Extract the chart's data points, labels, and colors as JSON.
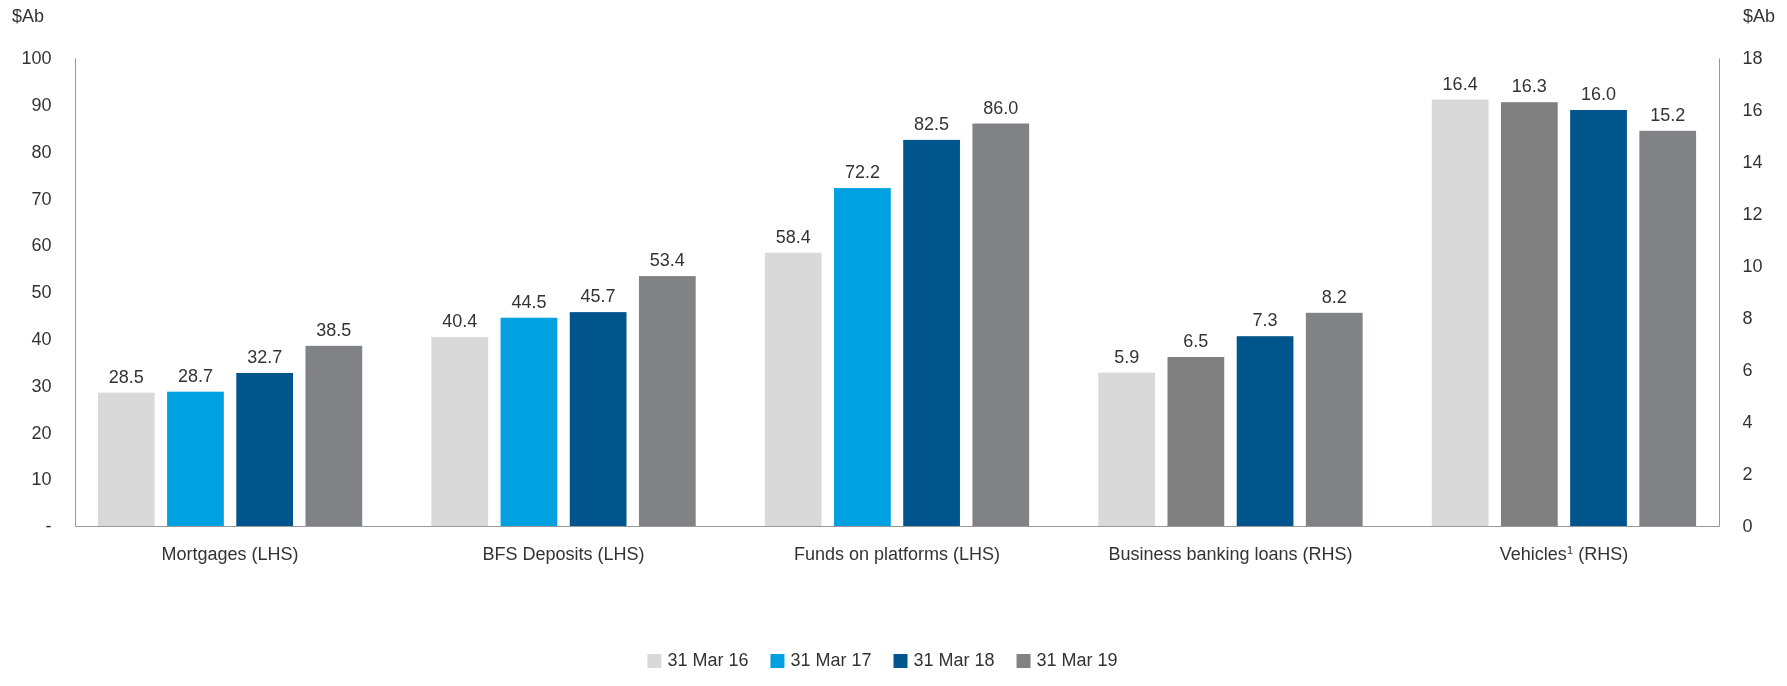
{
  "chart_data": {
    "type": "bar",
    "categories": [
      "Mortgages (LHS)",
      "BFS Deposits (LHS)",
      "Funds on platforms (LHS)",
      "Business banking loans (RHS)",
      "Vehicles$^{1}$ (RHS)"
    ],
    "series": [
      {
        "name": "31 Mar 16",
        "color": "#d9d9d9",
        "values": [
          28.5,
          40.4,
          58.4,
          null,
          null
        ],
        "value_labels": [
          "28.5",
          "40.4",
          "58.4",
          null,
          null
        ]
      },
      {
        "name": "31 Mar 17",
        "color": "#00a0e1",
        "values": [
          28.7,
          44.5,
          72.2,
          null,
          null
        ],
        "value_labels": [
          "28.7",
          "44.5",
          "72.2",
          null,
          null
        ]
      },
      {
        "name": "31 Mar 18",
        "color": "#00558c",
        "values": [
          32.7,
          45.7,
          82.5,
          null,
          null
        ],
        "value_labels": [
          "32.7",
          "45.7",
          "82.5",
          null,
          null
        ]
      },
      {
        "name": "31 Mar 19",
        "color": "#808285",
        "values": [
          38.5,
          53.4,
          86,
          null,
          null
        ],
        "value_labels": [
          "38.5",
          "53.4",
          "86.0",
          null,
          null
        ]
      },
      {
        "axis": "y2",
        "color": "#d9d9d9",
        "values": [
          null,
          null,
          null,
          5.9,
          16.4
        ],
        "value_labels": [
          null,
          null,
          null,
          "5.9",
          "16.4"
        ]
      },
      {
        "axis": "y2",
        "color": "#808080",
        "values": [
          null,
          null,
          null,
          6.5,
          16.3
        ],
        "value_labels": [
          null,
          null,
          null,
          "6.5",
          "16.3"
        ]
      },
      {
        "axis": "y2",
        "color": "#00558c",
        "values": [
          null,
          null,
          null,
          7.3,
          16
        ],
        "value_labels": [
          null,
          null,
          null,
          "7.3",
          "16.0"
        ]
      },
      {
        "axis": "y2",
        "color": "#808285",
        "values": [
          null,
          null,
          null,
          8.2,
          15.2
        ],
        "value_labels": [
          null,
          null,
          null,
          "8.2",
          "15.2"
        ]
      }
    ],
    "ylabel": "$Ab",
    "y2label": "$Ab",
    "ylim": [
      0,
      100
    ],
    "yticks": [
      {
        "value": 0,
        "label": "-"
      },
      10,
      20,
      30,
      40,
      50,
      60,
      70,
      80,
      90,
      100
    ],
    "y2lim": [
      0,
      18
    ],
    "y2ticks": [
      0,
      2,
      4,
      6,
      8,
      10,
      12,
      14,
      16,
      18
    ],
    "legend": "bottom",
    "grid": false
  }
}
